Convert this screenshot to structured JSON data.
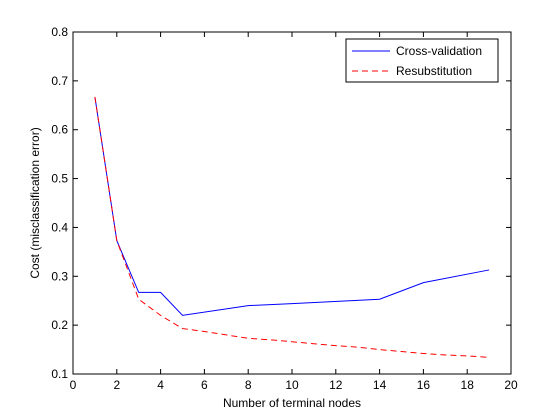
{
  "chart_data": {
    "type": "line",
    "title": "",
    "xlabel": "Number of terminal nodes",
    "ylabel": "Cost (misclassification error)",
    "xlim": [
      0,
      20
    ],
    "ylim": [
      0.1,
      0.8
    ],
    "xticks": [
      0,
      2,
      4,
      6,
      8,
      10,
      12,
      14,
      16,
      18,
      20
    ],
    "yticks": [
      0.1,
      0.2,
      0.3,
      0.4,
      0.5,
      0.6,
      0.7,
      0.8
    ],
    "grid": false,
    "legend_position": "top-right",
    "series": [
      {
        "name": "Cross-validation",
        "color": "#0000ff",
        "line_style": "solid",
        "x": [
          1,
          2,
          3,
          4,
          5,
          8,
          10,
          14,
          16,
          19
        ],
        "y": [
          0.667,
          0.373,
          0.267,
          0.267,
          0.22,
          0.24,
          0.244,
          0.253,
          0.287,
          0.313
        ]
      },
      {
        "name": "Resubstitution",
        "color": "#ff0000",
        "line_style": "dashed",
        "x": [
          1,
          2,
          3,
          4,
          5,
          6,
          7,
          8,
          9,
          10,
          11,
          12,
          13,
          14,
          15,
          16,
          17,
          18,
          19
        ],
        "y": [
          0.667,
          0.373,
          0.253,
          0.22,
          0.193,
          0.187,
          0.18,
          0.173,
          0.17,
          0.166,
          0.162,
          0.158,
          0.155,
          0.15,
          0.146,
          0.142,
          0.139,
          0.137,
          0.134
        ]
      }
    ]
  }
}
